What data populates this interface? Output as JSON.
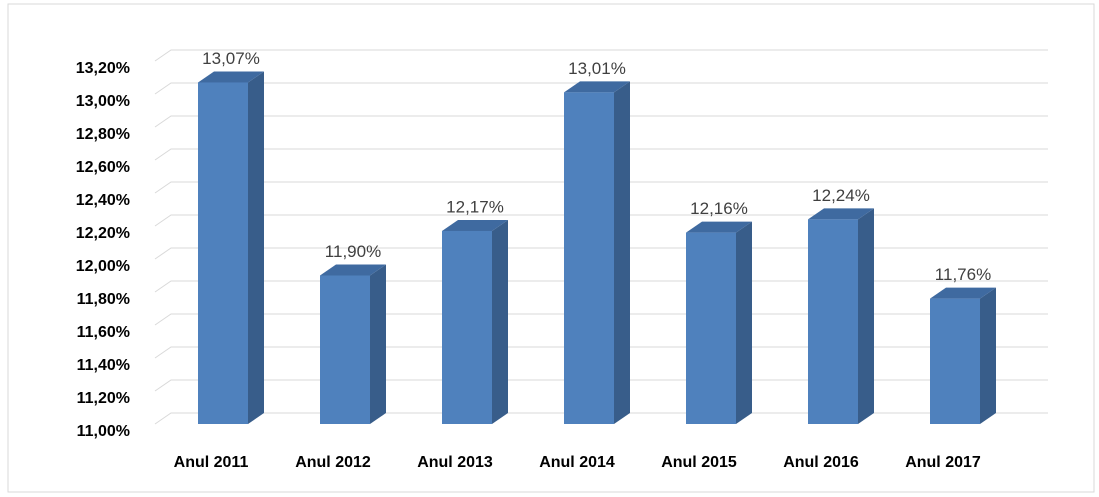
{
  "chart_data": {
    "type": "bar3d",
    "categories": [
      "Anul 2011",
      "Anul 2012",
      "Anul 2013",
      "Anul 2014",
      "Anul 2015",
      "Anul 2016",
      "Anul 2017"
    ],
    "values": [
      13.07,
      11.9,
      12.17,
      13.01,
      12.16,
      12.24,
      11.76
    ],
    "value_labels": [
      "13,07%",
      "11,90%",
      "12,17%",
      "13,01%",
      "12,16%",
      "12,24%",
      "11,76%"
    ],
    "color": "#4f81bd",
    "ylim": [
      11,
      13.2
    ],
    "yticks": [
      {
        "value": 11,
        "label": "11,00%"
      },
      {
        "value": 11.2,
        "label": "11,20%"
      },
      {
        "value": 11.4,
        "label": "11,40%"
      },
      {
        "value": 11.6,
        "label": "11,60%"
      },
      {
        "value": 11.8,
        "label": "11,80%"
      },
      {
        "value": 12,
        "label": "12,00%"
      },
      {
        "value": 12.2,
        "label": "12,20%"
      },
      {
        "value": 12.4,
        "label": "12,40%"
      },
      {
        "value": 12.6,
        "label": "12,60%"
      },
      {
        "value": 12.8,
        "label": "12,80%"
      },
      {
        "value": 13,
        "label": "13,00%"
      },
      {
        "value": 13.2,
        "label": "13,20%"
      }
    ],
    "grid": true
  }
}
